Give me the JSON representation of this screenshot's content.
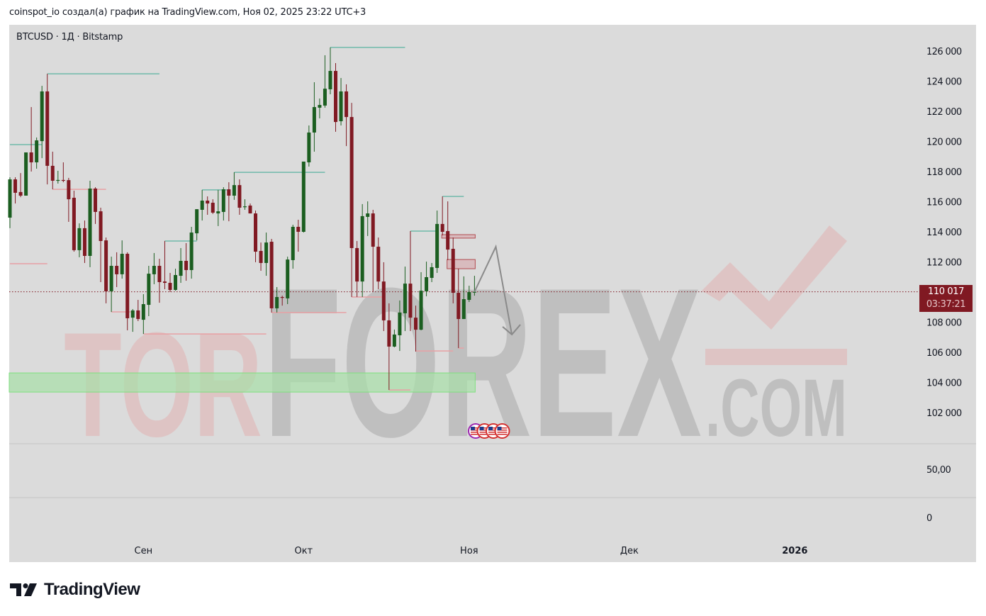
{
  "caption": "coinspot_io создал(а) график на TradingView.com, Ноя 02, 2025 23:22 UTC+3",
  "symbol_line": "BTCUSD · 1Д · Bitstamp",
  "price_tag": {
    "price": "110 017",
    "countdown": "03:37:21"
  },
  "watermark": {
    "part1": "TOR",
    "part2": "FOREX",
    "part3": ".COM"
  },
  "logo_text": "TradingView",
  "colors": {
    "up": "#1b5e20",
    "down": "#801922",
    "background": "#dbdbdb",
    "support_line": "#6fb9aa",
    "resistance_line": "#e8a0a4",
    "zone_green": "#a8e0a8",
    "zone_red": "#d7b3b6"
  },
  "lower_pane_ticks": [
    "50,00",
    "0"
  ],
  "event_icons": [
    "us-flag-icon",
    "us-flag-icon",
    "us-flag-icon",
    "us-flag-icon"
  ],
  "chart_data": {
    "type": "candlestick",
    "symbol": "BTCUSD",
    "interval": "1Д",
    "exchange": "Bitstamp",
    "y_ticks": [
      "126 000",
      "124 000",
      "122 000",
      "120 000",
      "118 000",
      "116 000",
      "114 000",
      "112 000",
      "110 000",
      "108 000",
      "106 000",
      "104 000",
      "102 000"
    ],
    "y_tick_values": [
      126000,
      124000,
      122000,
      120000,
      118000,
      116000,
      114000,
      112000,
      110000,
      108000,
      106000,
      104000,
      102000
    ],
    "x_ticks": [
      {
        "label": "Сен",
        "date": "2025-09-01",
        "bold": false
      },
      {
        "label": "Окт",
        "date": "2025-10-01",
        "bold": false
      },
      {
        "label": "Ноя",
        "date": "2025-11-01",
        "bold": false
      },
      {
        "label": "Дек",
        "date": "2025-12-01",
        "bold": false
      },
      {
        "label": "2026",
        "date": "2026-01-01",
        "bold": true
      }
    ],
    "last_price": 110017,
    "candle_fields": [
      "date",
      "open",
      "high",
      "low",
      "close"
    ],
    "candles": [
      [
        "2025-08-07",
        114940,
        117620,
        114240,
        117480
      ],
      [
        "2025-08-08",
        117480,
        117620,
        115880,
        116590
      ],
      [
        "2025-08-09",
        116640,
        117900,
        116300,
        116400
      ],
      [
        "2025-08-10",
        116400,
        119270,
        116400,
        119270
      ],
      [
        "2025-08-11",
        119270,
        122280,
        118000,
        118610
      ],
      [
        "2025-08-12",
        118610,
        120260,
        118190,
        120070
      ],
      [
        "2025-08-13",
        120020,
        123690,
        118890,
        123320
      ],
      [
        "2025-08-14",
        123320,
        124490,
        117150,
        118380
      ],
      [
        "2025-08-15",
        118380,
        119320,
        116820,
        117390
      ],
      [
        "2025-08-16",
        117390,
        118050,
        117200,
        117440
      ],
      [
        "2025-08-17",
        117440,
        118610,
        117290,
        117430
      ],
      [
        "2025-08-18",
        117430,
        117580,
        114660,
        116160
      ],
      [
        "2025-08-19",
        116260,
        116730,
        112680,
        112780
      ],
      [
        "2025-08-20",
        112780,
        114560,
        112310,
        114240
      ],
      [
        "2025-08-21",
        114240,
        114750,
        111930,
        112400
      ],
      [
        "2025-08-22",
        112400,
        117390,
        111650,
        116870
      ],
      [
        "2025-08-23",
        116870,
        116960,
        114520,
        115320
      ],
      [
        "2025-08-24",
        115360,
        115600,
        110660,
        113390
      ],
      [
        "2025-08-25",
        113430,
        113620,
        109250,
        110050
      ],
      [
        "2025-08-26",
        110050,
        112350,
        108680,
        111740
      ],
      [
        "2025-08-27",
        111740,
        112640,
        110330,
        111180
      ],
      [
        "2025-08-28",
        111180,
        113430,
        110890,
        112540
      ],
      [
        "2025-08-29",
        112540,
        112640,
        107460,
        108260
      ],
      [
        "2025-08-30",
        108300,
        108870,
        107360,
        108780
      ],
      [
        "2025-08-31",
        108780,
        109480,
        108070,
        108210
      ],
      [
        "2025-09-01",
        108160,
        109860,
        107220,
        109200
      ],
      [
        "2025-09-02",
        109150,
        111740,
        108400,
        111220
      ],
      [
        "2025-09-03",
        111180,
        112590,
        110520,
        111740
      ],
      [
        "2025-09-04",
        111740,
        112210,
        109290,
        110660
      ],
      [
        "2025-09-05",
        110700,
        113390,
        110190,
        110610
      ],
      [
        "2025-09-06",
        110610,
        111270,
        110000,
        110140
      ],
      [
        "2025-09-07",
        110140,
        111550,
        110090,
        111130
      ],
      [
        "2025-09-08",
        111080,
        112920,
        110610,
        112070
      ],
      [
        "2025-09-09",
        112070,
        113250,
        110750,
        111460
      ],
      [
        "2025-09-10",
        111460,
        114330,
        110890,
        113950
      ],
      [
        "2025-09-11",
        113900,
        115500,
        113430,
        115500
      ],
      [
        "2025-09-12",
        115460,
        116780,
        114750,
        116070
      ],
      [
        "2025-09-13",
        116070,
        116350,
        115130,
        115880
      ],
      [
        "2025-09-14",
        115930,
        116160,
        115180,
        115270
      ],
      [
        "2025-09-15",
        115220,
        116780,
        114380,
        115360
      ],
      [
        "2025-09-16",
        115320,
        116960,
        114750,
        116820
      ],
      [
        "2025-09-17",
        116820,
        117290,
        114700,
        116400
      ],
      [
        "2025-09-18",
        116400,
        117950,
        116120,
        117100
      ],
      [
        "2025-09-19",
        117100,
        117480,
        115130,
        115600
      ],
      [
        "2025-09-20",
        115650,
        116160,
        115460,
        115690
      ],
      [
        "2025-09-21",
        115740,
        115880,
        115220,
        115220
      ],
      [
        "2025-09-22",
        115220,
        115410,
        111980,
        112680
      ],
      [
        "2025-09-23",
        112730,
        113290,
        111410,
        111930
      ],
      [
        "2025-09-24",
        111930,
        113950,
        111080,
        113290
      ],
      [
        "2025-09-25",
        113340,
        113530,
        108640,
        108920
      ],
      [
        "2025-09-26",
        108920,
        110330,
        108640,
        109670
      ],
      [
        "2025-09-27",
        109670,
        109760,
        109100,
        109620
      ],
      [
        "2025-09-28",
        109580,
        112350,
        109200,
        112160
      ],
      [
        "2025-09-29",
        112120,
        114470,
        111550,
        114330
      ],
      [
        "2025-09-30",
        114330,
        114800,
        112680,
        114000
      ],
      [
        "2025-10-01",
        114000,
        118660,
        113950,
        118660
      ],
      [
        "2025-10-02",
        118610,
        121060,
        118330,
        120590
      ],
      [
        "2025-10-03",
        120590,
        123930,
        119320,
        122280
      ],
      [
        "2025-10-04",
        122240,
        122850,
        121530,
        122420
      ],
      [
        "2025-10-05",
        122380,
        125720,
        122240,
        123500
      ],
      [
        "2025-10-06",
        123460,
        126240,
        123130,
        124680
      ],
      [
        "2025-10-07",
        124680,
        125200,
        120640,
        121290
      ],
      [
        "2025-10-08",
        121340,
        124210,
        121060,
        123320
      ],
      [
        "2025-10-09",
        123320,
        123790,
        119690,
        121620
      ],
      [
        "2025-10-10",
        121620,
        122560,
        109670,
        112920
      ],
      [
        "2025-10-11",
        112920,
        113390,
        109670,
        110700
      ],
      [
        "2025-10-12",
        110700,
        115840,
        109670,
        115040
      ],
      [
        "2025-10-13",
        114990,
        116020,
        113720,
        115220
      ],
      [
        "2025-10-14",
        115220,
        115460,
        110000,
        113010
      ],
      [
        "2025-10-15",
        113010,
        113620,
        110190,
        110700
      ],
      [
        "2025-10-16",
        110700,
        111980,
        107410,
        108120
      ],
      [
        "2025-10-17",
        108120,
        109250,
        103500,
        106380
      ],
      [
        "2025-10-18",
        106380,
        107510,
        106330,
        107180
      ],
      [
        "2025-10-19",
        107130,
        109440,
        106090,
        108640
      ],
      [
        "2025-10-20",
        108590,
        111690,
        107410,
        110560
      ],
      [
        "2025-10-21",
        110560,
        114050,
        107410,
        108300
      ],
      [
        "2025-10-22",
        108300,
        109100,
        106050,
        107500
      ],
      [
        "2025-10-23",
        107500,
        111320,
        107460,
        110090
      ],
      [
        "2025-10-24",
        110050,
        112020,
        109720,
        110990
      ],
      [
        "2025-10-25",
        110940,
        111930,
        110660,
        111650
      ],
      [
        "2025-10-26",
        111600,
        115410,
        111270,
        114520
      ],
      [
        "2025-10-27",
        114520,
        116350,
        113760,
        114000
      ],
      [
        "2025-10-28",
        114050,
        116020,
        112120,
        112820
      ],
      [
        "2025-10-29",
        112870,
        113620,
        109250,
        109950
      ],
      [
        "2025-10-30",
        109950,
        111550,
        106280,
        108210
      ],
      [
        "2025-10-31",
        108210,
        111040,
        108210,
        109530
      ],
      [
        "2025-11-01",
        109480,
        110420,
        109340,
        110000
      ],
      [
        "2025-11-02",
        110000,
        111080,
        109760,
        110017
      ]
    ],
    "drawings": {
      "support_lines": [
        {
          "price": 124490,
          "from": "2025-08-14",
          "to": "2025-09-04"
        },
        {
          "price": 119790,
          "from": "2025-08-07",
          "to": "2025-08-13"
        },
        {
          "price": 117950,
          "from": "2025-09-18",
          "to": "2025-10-05"
        },
        {
          "price": 116780,
          "from": "2025-09-12",
          "to": "2025-09-17"
        },
        {
          "price": 113390,
          "from": "2025-09-05",
          "to": "2025-09-11"
        },
        {
          "price": 126240,
          "from": "2025-10-06",
          "to": "2025-10-20"
        },
        {
          "price": 114050,
          "from": "2025-10-21",
          "to": "2025-10-26"
        },
        {
          "price": 116350,
          "from": "2025-10-27",
          "to": "2025-10-31"
        }
      ],
      "resistance_lines": [
        {
          "price": 111880,
          "from": "2025-08-07",
          "to": "2025-08-14"
        },
        {
          "price": 116820,
          "from": "2025-08-15",
          "to": "2025-08-25"
        },
        {
          "price": 108680,
          "from": "2025-08-26",
          "to": "2025-08-30"
        },
        {
          "price": 107220,
          "from": "2025-09-01",
          "to": "2025-09-24"
        },
        {
          "price": 108640,
          "from": "2025-09-25",
          "to": "2025-10-09"
        },
        {
          "price": 109670,
          "from": "2025-10-10",
          "to": "2025-10-16"
        },
        {
          "price": 103500,
          "from": "2025-10-17",
          "to": "2025-10-21"
        },
        {
          "price": 106090,
          "from": "2025-10-22",
          "to": "2025-10-29"
        },
        {
          "price": 106280,
          "from": "2025-10-30",
          "to": "2025-10-31"
        }
      ],
      "zones": [
        {
          "kind": "red",
          "from": "2025-10-27",
          "to": "2025-11-02",
          "top": 113810,
          "bottom": 113580
        },
        {
          "kind": "red",
          "from": "2025-10-28",
          "to": "2025-11-02",
          "top": 112160,
          "bottom": 111550
        },
        {
          "kind": "green",
          "from": "2025-08-07",
          "to": "2025-11-02",
          "top": 104630,
          "bottom": 103360
        }
      ],
      "projection_path": [
        {
          "date": "2025-11-02",
          "price": 110017
        },
        {
          "date": "2025-11-06",
          "price": 113010
        },
        {
          "date": "2025-11-09",
          "price": 107180
        }
      ]
    }
  }
}
